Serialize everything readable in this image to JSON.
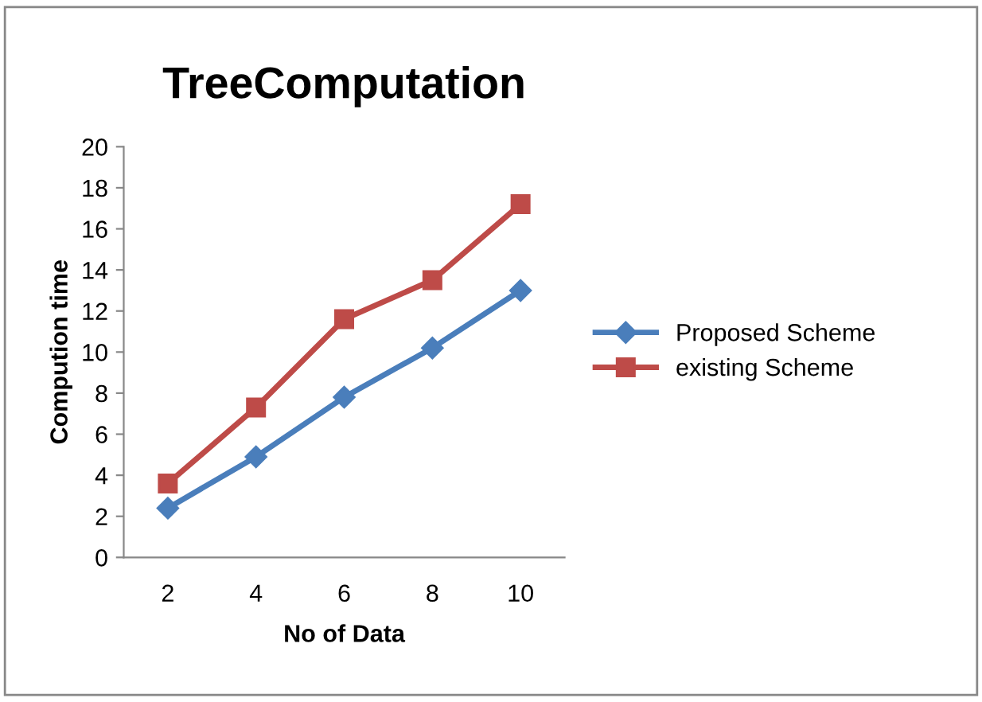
{
  "chart_data": {
    "type": "line",
    "title": "TreeComputation",
    "xlabel": "No of Data",
    "ylabel": "Compution time",
    "categories": [
      "2",
      "4",
      "6",
      "8",
      "10"
    ],
    "series": [
      {
        "name": "Proposed Scheme",
        "color": "#4a7ebb",
        "marker": "diamond",
        "values": [
          2.4,
          4.9,
          7.8,
          10.2,
          13.0
        ]
      },
      {
        "name": "existing Scheme",
        "color": "#be4b48",
        "marker": "square",
        "values": [
          3.6,
          7.3,
          11.6,
          13.5,
          17.2
        ]
      }
    ],
    "ylim": [
      0,
      20
    ],
    "yticks": [
      0,
      2,
      4,
      6,
      8,
      10,
      12,
      14,
      16,
      18,
      20
    ],
    "grid": false,
    "legend": "right",
    "line_style": "solid"
  }
}
